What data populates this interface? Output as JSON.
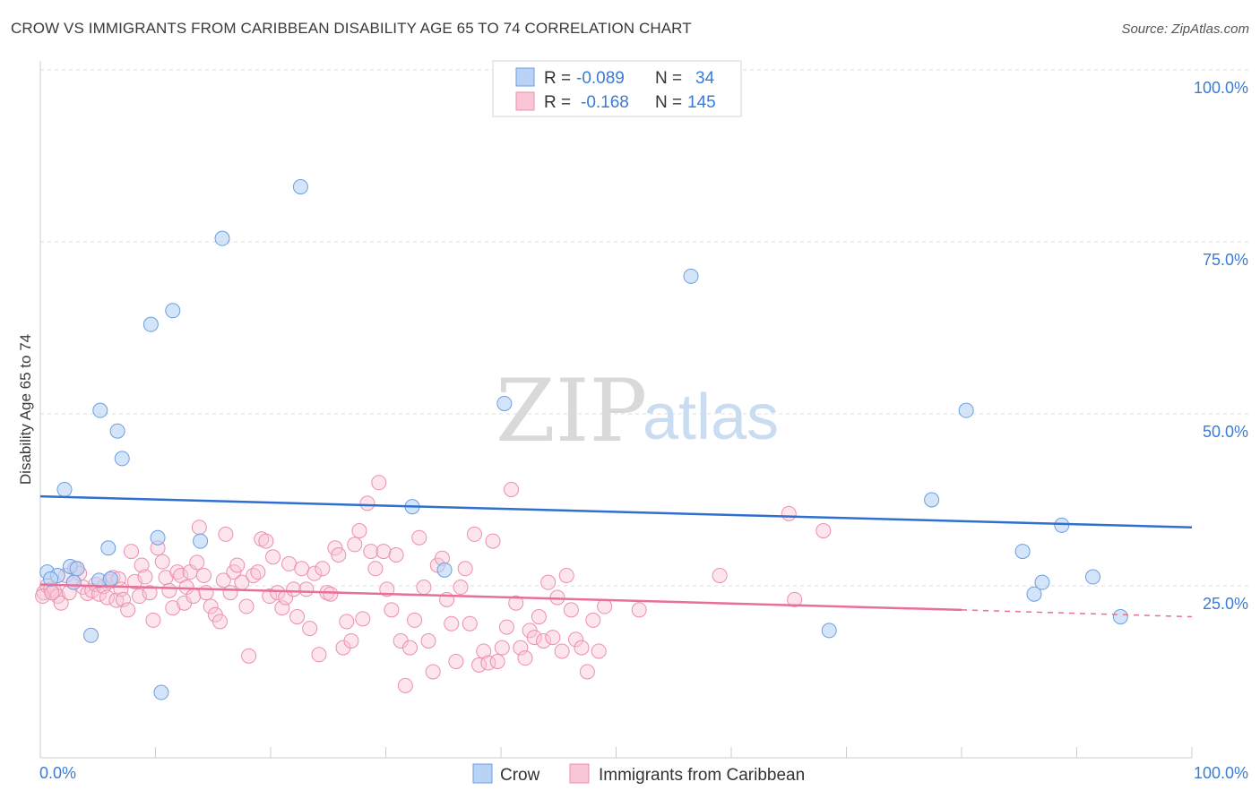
{
  "header": {
    "title": "CROW VS IMMIGRANTS FROM CARIBBEAN DISABILITY AGE 65 TO 74 CORRELATION CHART",
    "source": "Source: ZipAtlas.com"
  },
  "watermark": {
    "part1": "ZIP",
    "part2": "atlas"
  },
  "legend": {
    "rows": [
      {
        "r_label": "R =",
        "r_value": "-0.089",
        "n_label": "N =",
        "n_value": "34"
      },
      {
        "r_label": "R =",
        "r_value": "-0.168",
        "n_label": "N =",
        "n_value": "145"
      }
    ]
  },
  "bottom_legend": [
    {
      "label": "Crow"
    },
    {
      "label": "Immigrants from Caribbean"
    }
  ],
  "colors": {
    "crow_fill": "#b8d3f5",
    "crow_stroke": "#6a9fe0",
    "crow_line": "#2f6fd0",
    "carib_fill": "#f9c6d6",
    "carib_stroke": "#ec8fae",
    "carib_line": "#e86f98",
    "axis_text": "#3a7bd5",
    "grid": "#dddddd"
  },
  "chart_data": {
    "type": "scatter",
    "title": "CROW VS IMMIGRANTS FROM CARIBBEAN DISABILITY AGE 65 TO 74 CORRELATION CHART",
    "xlabel": "",
    "ylabel": "Disability Age 65 to 74",
    "x_tick_labels": [
      "0.0%",
      "100.0%"
    ],
    "y_tick_labels": [
      "25.0%",
      "50.0%",
      "75.0%",
      "100.0%"
    ],
    "xlim": [
      0,
      100
    ],
    "ylim": [
      0,
      100
    ],
    "series": [
      {
        "name": "Crow",
        "r": -0.089,
        "n": 34,
        "trend": {
          "x": [
            0,
            100
          ],
          "y": [
            38.0,
            33.5
          ]
        },
        "points": [
          [
            0.6,
            27.0
          ],
          [
            1.5,
            26.5
          ],
          [
            2.1,
            39.0
          ],
          [
            2.6,
            27.8
          ],
          [
            3.2,
            27.5
          ],
          [
            4.4,
            17.8
          ],
          [
            5.1,
            25.8
          ],
          [
            5.2,
            50.5
          ],
          [
            5.9,
            30.5
          ],
          [
            6.7,
            47.5
          ],
          [
            7.1,
            43.5
          ],
          [
            9.6,
            63.0
          ],
          [
            10.2,
            32.0
          ],
          [
            10.5,
            9.5
          ],
          [
            11.5,
            65.0
          ],
          [
            13.9,
            31.5
          ],
          [
            15.8,
            75.5
          ],
          [
            22.6,
            83.0
          ],
          [
            32.3,
            36.5
          ],
          [
            35.1,
            27.3
          ],
          [
            40.3,
            51.5
          ],
          [
            56.5,
            70.0
          ],
          [
            68.5,
            18.5
          ],
          [
            77.4,
            37.5
          ],
          [
            80.4,
            50.5
          ],
          [
            85.3,
            30.0
          ],
          [
            86.3,
            23.8
          ],
          [
            87.0,
            25.5
          ],
          [
            88.7,
            33.8
          ],
          [
            91.4,
            26.3
          ],
          [
            93.8,
            20.5
          ],
          [
            0.9,
            26.0
          ],
          [
            2.9,
            25.5
          ],
          [
            6.1,
            26.0
          ]
        ]
      },
      {
        "name": "Immigrants from Caribbean",
        "r": -0.168,
        "n": 145,
        "trend": {
          "x": [
            0,
            80
          ],
          "y": [
            25.2,
            21.5
          ]
        },
        "trend_dashed": {
          "x": [
            80,
            100
          ],
          "y": [
            21.5,
            20.5
          ]
        },
        "points": [
          [
            0.3,
            24.0
          ],
          [
            0.6,
            25.0
          ],
          [
            0.9,
            24.5
          ],
          [
            1.2,
            24.3
          ],
          [
            1.5,
            23.5
          ],
          [
            1.8,
            22.5
          ],
          [
            2.2,
            26.5
          ],
          [
            2.5,
            24.0
          ],
          [
            2.9,
            25.5
          ],
          [
            3.0,
            27.5
          ],
          [
            3.4,
            26.8
          ],
          [
            3.7,
            24.8
          ],
          [
            4.1,
            23.9
          ],
          [
            4.5,
            24.3
          ],
          [
            4.8,
            25.2
          ],
          [
            5.1,
            23.8
          ],
          [
            5.5,
            24.9
          ],
          [
            5.8,
            23.3
          ],
          [
            6.0,
            25.6
          ],
          [
            6.3,
            26.2
          ],
          [
            6.6,
            22.9
          ],
          [
            6.8,
            26.0
          ],
          [
            7.0,
            24.5
          ],
          [
            7.2,
            23.0
          ],
          [
            7.6,
            21.5
          ],
          [
            7.9,
            30.0
          ],
          [
            8.2,
            25.6
          ],
          [
            8.6,
            23.5
          ],
          [
            8.8,
            28.0
          ],
          [
            9.1,
            26.3
          ],
          [
            9.5,
            24.0
          ],
          [
            9.8,
            20.0
          ],
          [
            10.2,
            30.5
          ],
          [
            10.6,
            28.5
          ],
          [
            10.9,
            26.2
          ],
          [
            11.2,
            24.3
          ],
          [
            11.5,
            21.8
          ],
          [
            11.9,
            27.0
          ],
          [
            12.2,
            26.5
          ],
          [
            12.5,
            22.5
          ],
          [
            12.7,
            24.8
          ],
          [
            13.0,
            27.0
          ],
          [
            13.3,
            23.5
          ],
          [
            13.6,
            28.4
          ],
          [
            13.8,
            33.5
          ],
          [
            14.2,
            26.5
          ],
          [
            14.4,
            24.0
          ],
          [
            14.8,
            22.0
          ],
          [
            15.2,
            20.8
          ],
          [
            15.6,
            19.8
          ],
          [
            15.9,
            25.8
          ],
          [
            16.1,
            32.5
          ],
          [
            16.5,
            24.0
          ],
          [
            16.8,
            27.0
          ],
          [
            17.1,
            28.0
          ],
          [
            17.5,
            25.5
          ],
          [
            17.9,
            22.0
          ],
          [
            18.1,
            14.8
          ],
          [
            18.5,
            26.5
          ],
          [
            18.9,
            27.0
          ],
          [
            19.2,
            31.8
          ],
          [
            19.6,
            31.5
          ],
          [
            19.9,
            23.5
          ],
          [
            20.2,
            29.2
          ],
          [
            20.6,
            24.0
          ],
          [
            21.0,
            21.8
          ],
          [
            21.3,
            23.3
          ],
          [
            21.6,
            28.2
          ],
          [
            22.0,
            24.5
          ],
          [
            22.3,
            20.5
          ],
          [
            22.7,
            27.5
          ],
          [
            23.1,
            24.5
          ],
          [
            23.4,
            18.8
          ],
          [
            23.8,
            26.8
          ],
          [
            24.2,
            15.0
          ],
          [
            24.5,
            27.5
          ],
          [
            24.9,
            24.0
          ],
          [
            25.2,
            23.8
          ],
          [
            25.6,
            30.5
          ],
          [
            25.9,
            29.5
          ],
          [
            26.3,
            16.0
          ],
          [
            26.6,
            19.8
          ],
          [
            27.0,
            17.0
          ],
          [
            27.3,
            31.0
          ],
          [
            27.7,
            33.0
          ],
          [
            28.0,
            20.2
          ],
          [
            28.4,
            37.0
          ],
          [
            28.7,
            30.0
          ],
          [
            29.1,
            27.5
          ],
          [
            29.4,
            40.0
          ],
          [
            29.8,
            30.0
          ],
          [
            30.1,
            24.5
          ],
          [
            30.5,
            21.5
          ],
          [
            30.9,
            29.5
          ],
          [
            31.3,
            17.0
          ],
          [
            31.7,
            10.5
          ],
          [
            32.1,
            16.0
          ],
          [
            32.5,
            20.0
          ],
          [
            32.9,
            32.0
          ],
          [
            33.3,
            24.8
          ],
          [
            33.7,
            17.0
          ],
          [
            34.1,
            12.5
          ],
          [
            34.5,
            28.0
          ],
          [
            34.9,
            29.0
          ],
          [
            35.3,
            23.0
          ],
          [
            35.7,
            19.5
          ],
          [
            36.1,
            14.0
          ],
          [
            36.5,
            24.8
          ],
          [
            36.9,
            27.5
          ],
          [
            37.3,
            19.5
          ],
          [
            37.7,
            32.5
          ],
          [
            38.1,
            13.5
          ],
          [
            38.5,
            15.5
          ],
          [
            38.9,
            13.8
          ],
          [
            39.3,
            31.5
          ],
          [
            39.7,
            14.0
          ],
          [
            40.1,
            16.0
          ],
          [
            40.5,
            19.0
          ],
          [
            40.9,
            39.0
          ],
          [
            41.3,
            22.5
          ],
          [
            41.7,
            16.0
          ],
          [
            42.1,
            14.5
          ],
          [
            42.5,
            18.5
          ],
          [
            42.9,
            17.5
          ],
          [
            43.3,
            20.5
          ],
          [
            43.7,
            17.0
          ],
          [
            44.1,
            25.5
          ],
          [
            44.5,
            17.5
          ],
          [
            44.9,
            23.3
          ],
          [
            45.3,
            15.5
          ],
          [
            45.7,
            26.5
          ],
          [
            46.1,
            21.5
          ],
          [
            46.5,
            17.2
          ],
          [
            47.0,
            16.0
          ],
          [
            47.5,
            12.5
          ],
          [
            48.0,
            20.0
          ],
          [
            48.5,
            15.5
          ],
          [
            49.0,
            22.0
          ],
          [
            52.0,
            21.5
          ],
          [
            59.0,
            26.5
          ],
          [
            65.0,
            35.5
          ],
          [
            65.5,
            23.0
          ],
          [
            68.0,
            33.0
          ],
          [
            0.2,
            23.5
          ],
          [
            1.0,
            24.0
          ]
        ]
      }
    ]
  }
}
